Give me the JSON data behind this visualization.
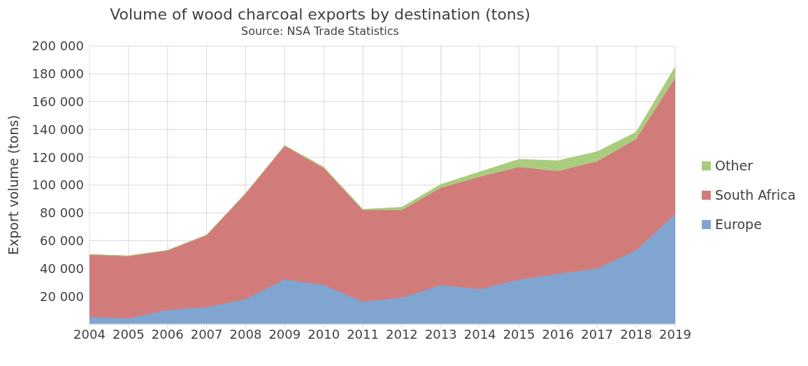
{
  "chart_data": {
    "type": "area",
    "stacked": true,
    "title": "Volume of wood charcoal exports by destination (tons)",
    "subtitle": "Source: NSA Trade Statistics",
    "ylabel": "Export volume (tons)",
    "categories": [
      "2004",
      "2005",
      "2006",
      "2007",
      "2008",
      "2009",
      "2010",
      "2011",
      "2012",
      "2013",
      "2014",
      "2015",
      "2016",
      "2017",
      "2018",
      "2019"
    ],
    "series": [
      {
        "name": "Europe",
        "color": "#7fa5d0",
        "values": [
          5000,
          4000,
          10000,
          12000,
          18000,
          32000,
          28000,
          16000,
          19000,
          28000,
          25000,
          32000,
          36000,
          40000,
          53000,
          79000
        ]
      },
      {
        "name": "South Africa",
        "color": "#d27b7b",
        "values": [
          45000,
          45000,
          43000,
          52000,
          76000,
          96000,
          84000,
          66000,
          63000,
          70000,
          81000,
          81000,
          74000,
          77000,
          80000,
          98000
        ]
      },
      {
        "name": "Other",
        "color": "#a9cc7f",
        "values": [
          0,
          0,
          0,
          0,
          0,
          500,
          1000,
          500,
          2000,
          2500,
          3500,
          5500,
          7500,
          7000,
          5000,
          8000
        ]
      }
    ],
    "ylim": [
      0,
      200000
    ],
    "yticks": [
      {
        "value": 20000,
        "label": "20 000"
      },
      {
        "value": 40000,
        "label": "40 000"
      },
      {
        "value": 60000,
        "label": "60 000"
      },
      {
        "value": 80000,
        "label": "80 000"
      },
      {
        "value": 100000,
        "label": "100 000"
      },
      {
        "value": 120000,
        "label": "120 000"
      },
      {
        "value": 140000,
        "label": "140 000"
      },
      {
        "value": 160000,
        "label": "160 000"
      },
      {
        "value": 180000,
        "label": "180 000"
      },
      {
        "value": 200000,
        "label": "200 000"
      }
    ],
    "grid": true,
    "legend": "right"
  }
}
